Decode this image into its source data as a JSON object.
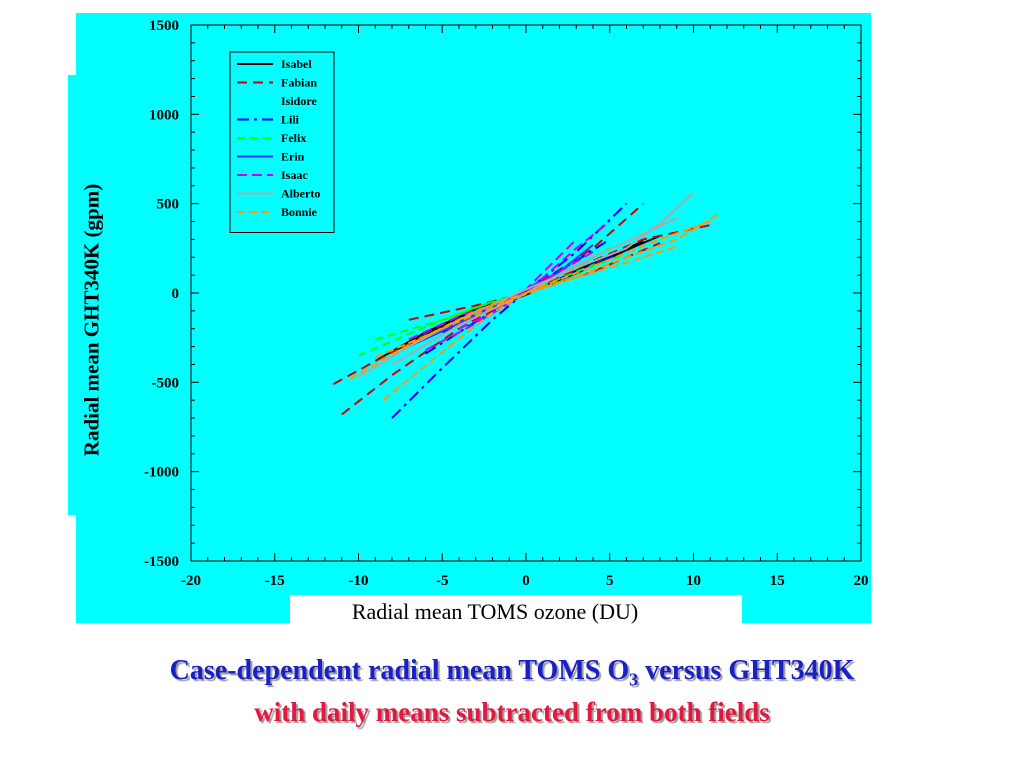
{
  "chart_data": {
    "type": "line",
    "xlabel": "Radial mean TOMS ozone (DU)",
    "ylabel": "Radial mean GHT340K (gpm)",
    "xlim": [
      -20,
      20
    ],
    "ylim": [
      -1500,
      1500
    ],
    "xticks": [
      -20,
      -15,
      -10,
      -5,
      0,
      5,
      10,
      15,
      20
    ],
    "yticks": [
      1500,
      1000,
      500,
      0,
      -500,
      -1000,
      -1500
    ],
    "grid": false,
    "legend_position": "top-left",
    "series": [
      {
        "name": "Isabel",
        "color": "#000000",
        "dash": "",
        "segments": [
          [
            [
              -9,
              -380
            ],
            [
              -6,
              -220
            ],
            [
              -3,
              -90
            ],
            [
              0,
              0
            ],
            [
              3,
              110
            ],
            [
              6,
              240
            ],
            [
              8,
              320
            ]
          ],
          [
            [
              -8,
              -330
            ],
            [
              -4,
              -140
            ],
            [
              0,
              -10
            ],
            [
              4,
              170
            ],
            [
              7,
              290
            ]
          ]
        ]
      },
      {
        "name": "Fabian",
        "color": "#cc0000",
        "dash": "10,6",
        "segments": [
          [
            [
              -11.5,
              -510
            ],
            [
              -8,
              -330
            ],
            [
              -4,
              -150
            ],
            [
              0,
              0
            ],
            [
              4,
              180
            ],
            [
              7,
              300
            ],
            [
              11,
              380
            ]
          ],
          [
            [
              -11,
              -680
            ],
            [
              -8,
              -460
            ],
            [
              -4,
              -200
            ],
            [
              0,
              10
            ],
            [
              4,
              250
            ],
            [
              7,
              500
            ]
          ],
          [
            [
              -7,
              -150
            ],
            [
              -3,
              -70
            ],
            [
              0,
              0
            ],
            [
              4,
              120
            ],
            [
              8,
              280
            ]
          ]
        ]
      },
      {
        "name": "Isidore",
        "color": "#00ffff",
        "dash": "",
        "segments": []
      },
      {
        "name": "Lili",
        "color": "#0000ff",
        "dash": "12,5,3,5",
        "segments": [
          [
            [
              -8,
              -700
            ],
            [
              -5,
              -420
            ],
            [
              -2,
              -150
            ],
            [
              0,
              10
            ],
            [
              3,
              230
            ],
            [
              6,
              500
            ]
          ],
          [
            [
              -6,
              -340
            ],
            [
              -3,
              -160
            ],
            [
              0,
              0
            ],
            [
              3,
              120
            ],
            [
              6,
              240
            ]
          ],
          [
            [
              -5,
              -220
            ],
            [
              -2,
              -80
            ],
            [
              0,
              20
            ],
            [
              3,
              180
            ],
            [
              5,
              300
            ]
          ]
        ]
      },
      {
        "name": "Felix",
        "color": "#00ff00",
        "dash": "8,5",
        "segments": [
          [
            [
              -10,
              -350
            ],
            [
              -6,
              -190
            ],
            [
              -3,
              -80
            ],
            [
              0,
              0
            ],
            [
              3,
              120
            ],
            [
              6,
              220
            ]
          ],
          [
            [
              -9,
              -260
            ],
            [
              -5,
              -150
            ],
            [
              -2,
              -50
            ],
            [
              0,
              0
            ],
            [
              3,
              150
            ],
            [
              5,
              250
            ]
          ]
        ]
      },
      {
        "name": "Erin",
        "color": "#3333ff",
        "dash": "",
        "segments": [
          [
            [
              -7,
              -300
            ],
            [
              -4,
              -170
            ],
            [
              -2,
              -70
            ],
            [
              0,
              10
            ],
            [
              2,
              120
            ],
            [
              4,
              270
            ]
          ],
          [
            [
              -6,
              -240
            ],
            [
              -3,
              -120
            ],
            [
              0,
              0
            ],
            [
              2,
              100
            ],
            [
              4,
              200
            ]
          ]
        ]
      },
      {
        "name": "Isaac",
        "color": "#cc00ff",
        "dash": "10,5",
        "segments": [
          [
            [
              -6,
              -320
            ],
            [
              -3,
              -170
            ],
            [
              0,
              0
            ],
            [
              3,
              250
            ],
            [
              5,
              400
            ]
          ],
          [
            [
              -7,
              -260
            ],
            [
              -4,
              -130
            ],
            [
              -1,
              -30
            ],
            [
              2,
              120
            ],
            [
              4,
              230
            ]
          ],
          [
            [
              -4,
              -200
            ],
            [
              -2,
              -110
            ],
            [
              0,
              20
            ],
            [
              3,
              300
            ]
          ]
        ]
      },
      {
        "name": "Alberto",
        "color": "#aaaaaa",
        "dash": "",
        "segments": [
          [
            [
              -10,
              -470
            ],
            [
              -7,
              -300
            ],
            [
              -4,
              -150
            ],
            [
              0,
              20
            ],
            [
              3,
              140
            ],
            [
              6,
              250
            ],
            [
              8,
              390
            ],
            [
              10,
              560
            ]
          ],
          [
            [
              -8,
              -400
            ],
            [
              -4,
              -180
            ],
            [
              0,
              0
            ],
            [
              4,
              200
            ],
            [
              9,
              420
            ]
          ]
        ]
      },
      {
        "name": "Bonnie",
        "color": "#ff9900",
        "dash": "8,4",
        "segments": [
          [
            [
              -10.5,
              -480
            ],
            [
              -7,
              -290
            ],
            [
              -3,
              -100
            ],
            [
              0,
              0
            ],
            [
              3,
              90
            ],
            [
              6,
              200
            ],
            [
              9,
              300
            ],
            [
              11.5,
              440
            ]
          ],
          [
            [
              -8.5,
              -600
            ],
            [
              -5,
              -330
            ],
            [
              -2,
              -110
            ],
            [
              0,
              0
            ],
            [
              4,
              150
            ],
            [
              8,
              300
            ],
            [
              11,
              400
            ]
          ],
          [
            [
              -9,
              -360
            ],
            [
              -5,
              -200
            ],
            [
              -1,
              -40
            ],
            [
              2,
              60
            ],
            [
              6,
              170
            ],
            [
              9,
              260
            ]
          ]
        ]
      }
    ]
  },
  "caption": {
    "line1_prefix": "Case-dependent radial mean TOMS O",
    "line1_sub": "3",
    "line1_suffix": " versus GHT340K",
    "line2": "with daily means subtracted from both fields"
  }
}
